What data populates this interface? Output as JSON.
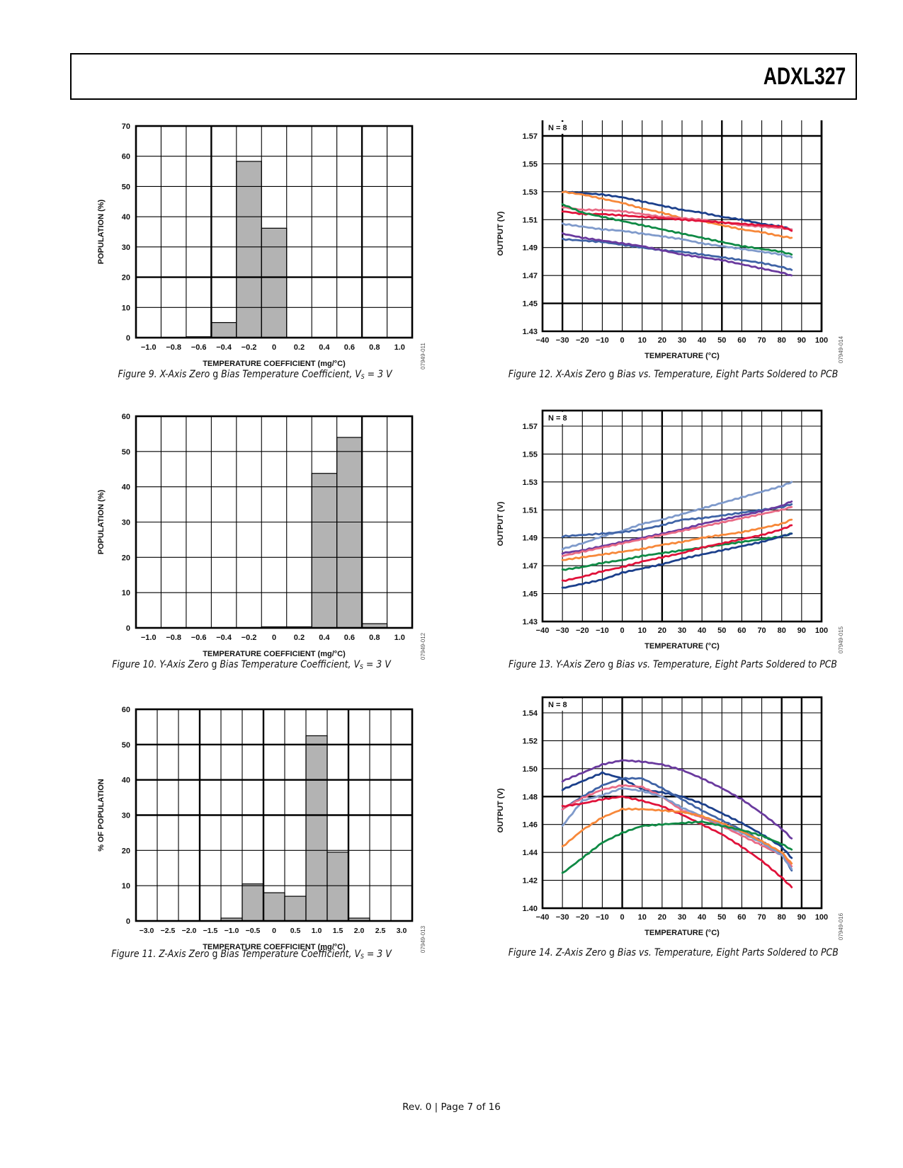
{
  "header": {
    "title": "ADXL327"
  },
  "footer": {
    "text": "Rev. 0 | Page 7 of 16"
  },
  "figures": [
    {
      "caption_prefix": "Figure 9. X-Axis Zero ",
      "caption_g": "g",
      "caption_mid": " Bias Temperature Coefficient, V",
      "caption_sub": "S",
      "caption_suffix": " = 3 V",
      "figure_id": "07949-011"
    },
    {
      "caption_prefix": "Figure 10. Y-Axis Zero ",
      "caption_g": "g",
      "caption_mid": " Bias Temperature Coefficient, V",
      "caption_sub": "S",
      "caption_suffix": " = 3 V",
      "figure_id": "07949-012"
    },
    {
      "caption_prefix": "Figure 11. Z-Axis Zero ",
      "caption_g": "g",
      "caption_mid": " Bias Temperature Coefficient, V",
      "caption_sub": "S",
      "caption_suffix": " = 3 V",
      "figure_id": "07949-013"
    },
    {
      "caption_prefix": "Figure 12. X-Axis Zero ",
      "caption_g": "g",
      "caption_mid": " Bias vs. Temperature, Eight Parts Soldered to PCB",
      "figure_id": "07949-014"
    },
    {
      "caption_prefix": "Figure 13. Y-Axis Zero ",
      "caption_g": "g",
      "caption_mid": " Bias vs. Temperature, Eight Parts Soldered to PCB",
      "figure_id": "07949-015"
    },
    {
      "caption_prefix": "Figure 14. Z-Axis Zero ",
      "caption_g": "g",
      "caption_mid": " Bias vs. Temperature, Eight Parts Soldered to PCB",
      "figure_id": "07949-016"
    }
  ],
  "chart_data": [
    {
      "id": "fig9",
      "type": "bar",
      "title": "Figure 9. X-Axis Zero g Bias Temperature Coefficient, VS = 3 V",
      "xlabel": "TEMPERATURE COEFFICIENT (mg/°C)",
      "ylabel": "POPULATION (%)",
      "categories": [
        "−1.0",
        "−0.8",
        "−0.6",
        "−0.4",
        "−0.2",
        "0",
        "0.2",
        "0.4",
        "0.6",
        "0.8",
        "1.0"
      ],
      "values": [
        0,
        0,
        0.3,
        5,
        58.3,
        36.2,
        0,
        0,
        0,
        0,
        0
      ],
      "ylim": [
        0,
        70
      ],
      "yticks": [
        0,
        10,
        20,
        30,
        40,
        50,
        60,
        70
      ],
      "grid": true,
      "bar_color": "#b3b3b3"
    },
    {
      "id": "fig10",
      "type": "bar",
      "title": "Figure 10. Y-Axis Zero g Bias Temperature Coefficient, VS = 3 V",
      "xlabel": "TEMPERATURE COEFFICIENT (mg/°C)",
      "ylabel": "POPULATION (%)",
      "categories": [
        "−1.0",
        "−0.8",
        "−0.6",
        "−0.4",
        "−0.2",
        "0",
        "0.2",
        "0.4",
        "0.6",
        "0.8",
        "1.0"
      ],
      "values": [
        0,
        0,
        0,
        0,
        0,
        0.3,
        0.3,
        43.8,
        54,
        1.2,
        0
      ],
      "ylim": [
        0,
        60
      ],
      "yticks": [
        0,
        10,
        20,
        30,
        40,
        50,
        60
      ],
      "grid": true,
      "bar_color": "#b3b3b3"
    },
    {
      "id": "fig11",
      "type": "bar",
      "title": "Figure 11. Z-Axis Zero g Bias Temperature Coefficient, VS = 3 V",
      "xlabel": "TEMPERATURE COEFFICIENT (mg/°C)",
      "ylabel": "% OF POPULATION",
      "categories": [
        "−3.0",
        "−2.5",
        "−2.0",
        "−1.5",
        "−1.0",
        "−0.5",
        "0",
        "0.5",
        "1.0",
        "1.5",
        "2.0",
        "2.5",
        "3.0"
      ],
      "values": [
        0,
        0,
        0,
        0,
        0.8,
        10.5,
        8,
        7,
        52.5,
        19.5,
        0.8,
        0,
        0
      ],
      "ylim": [
        0,
        60
      ],
      "yticks": [
        0,
        10,
        20,
        30,
        40,
        50,
        60
      ],
      "grid": true,
      "bar_color": "#b3b3b3"
    },
    {
      "id": "fig12",
      "type": "line",
      "title": "Figure 12. X-Axis Zero g Bias vs. Temperature, Eight Parts Soldered to PCB",
      "xlabel": "TEMPERATURE (°C)",
      "ylabel": "OUTPUT (V)",
      "annotation": "N = 8",
      "xlim": [
        -40,
        100
      ],
      "ylim": [
        1.43,
        1.57
      ],
      "xticks": [
        -40,
        -30,
        -20,
        -10,
        0,
        10,
        20,
        30,
        40,
        50,
        60,
        70,
        80,
        90,
        100
      ],
      "xtick_labels": [
        "−40",
        "−30",
        "−20",
        "−10",
        "0",
        "10",
        "20",
        "30",
        "40",
        "50",
        "60",
        "70",
        "80",
        "90",
        "100"
      ],
      "yticks": [
        1.43,
        1.45,
        1.47,
        1.49,
        1.51,
        1.53,
        1.55,
        1.57
      ],
      "ytick_labels": [
        "1.43",
        "1.45",
        "1.47",
        "1.49",
        "1.51",
        "1.53",
        "1.55",
        "1.57"
      ],
      "grid": true,
      "x": [
        -30,
        -20,
        -10,
        0,
        10,
        20,
        30,
        40,
        50,
        60,
        70,
        80,
        85
      ],
      "series": [
        {
          "name": "part-1",
          "color": "#1b3f8b",
          "values": [
            1.53,
            1.529,
            1.528,
            1.526,
            1.523,
            1.52,
            1.517,
            1.515,
            1.512,
            1.51,
            1.507,
            1.505,
            1.503
          ]
        },
        {
          "name": "part-2",
          "color": "#f7883a",
          "values": [
            1.53,
            1.528,
            1.525,
            1.522,
            1.518,
            1.515,
            1.511,
            1.509,
            1.506,
            1.503,
            1.501,
            1.498,
            1.497
          ]
        },
        {
          "name": "part-3",
          "color": "#e96b86",
          "values": [
            1.519,
            1.517,
            1.517,
            1.516,
            1.514,
            1.512,
            1.511,
            1.51,
            1.508,
            1.506,
            1.505,
            1.504,
            1.503
          ]
        },
        {
          "name": "part-4",
          "color": "#e0123a",
          "values": [
            1.516,
            1.514,
            1.514,
            1.513,
            1.512,
            1.511,
            1.51,
            1.509,
            1.508,
            1.507,
            1.506,
            1.505,
            1.502
          ]
        },
        {
          "name": "part-5",
          "color": "#0f8a45",
          "values": [
            1.521,
            1.515,
            1.512,
            1.509,
            1.506,
            1.503,
            1.5,
            1.497,
            1.494,
            1.491,
            1.489,
            1.487,
            1.485
          ]
        },
        {
          "name": "part-6",
          "color": "#7f9acb",
          "values": [
            1.507,
            1.505,
            1.503,
            1.502,
            1.5,
            1.498,
            1.496,
            1.493,
            1.491,
            1.489,
            1.487,
            1.485,
            1.483
          ]
        },
        {
          "name": "part-7",
          "color": "#3f63a6",
          "values": [
            1.496,
            1.495,
            1.494,
            1.492,
            1.49,
            1.488,
            1.487,
            1.485,
            1.483,
            1.481,
            1.479,
            1.476,
            1.474
          ]
        },
        {
          "name": "part-8",
          "color": "#6a3a9e",
          "values": [
            1.5,
            1.497,
            1.495,
            1.493,
            1.491,
            1.488,
            1.485,
            1.483,
            1.481,
            1.478,
            1.475,
            1.472,
            1.47
          ]
        }
      ]
    },
    {
      "id": "fig13",
      "type": "line",
      "title": "Figure 13. Y-Axis Zero g Bias vs. Temperature, Eight Parts Soldered to PCB",
      "xlabel": "TEMPERATURE (°C)",
      "ylabel": "OUTPUT (V)",
      "annotation": "N = 8",
      "xlim": [
        -40,
        100
      ],
      "ylim": [
        1.43,
        1.57
      ],
      "xticks": [
        -40,
        -30,
        -20,
        -10,
        0,
        10,
        20,
        30,
        40,
        50,
        60,
        70,
        80,
        90,
        100
      ],
      "xtick_labels": [
        "−40",
        "−30",
        "−20",
        "−10",
        "0",
        "10",
        "20",
        "30",
        "40",
        "50",
        "60",
        "70",
        "80",
        "90",
        "100"
      ],
      "yticks": [
        1.43,
        1.45,
        1.47,
        1.49,
        1.51,
        1.53,
        1.55,
        1.57
      ],
      "ytick_labels": [
        "1.43",
        "1.45",
        "1.47",
        "1.49",
        "1.51",
        "1.53",
        "1.55",
        "1.57"
      ],
      "grid": true,
      "x": [
        -30,
        -20,
        -10,
        0,
        10,
        20,
        30,
        40,
        50,
        60,
        70,
        80,
        85
      ],
      "series": [
        {
          "name": "part-1",
          "color": "#7f9acb",
          "values": [
            1.482,
            1.486,
            1.491,
            1.495,
            1.5,
            1.503,
            1.507,
            1.511,
            1.515,
            1.519,
            1.523,
            1.527,
            1.53
          ]
        },
        {
          "name": "part-2",
          "color": "#3f63a6",
          "values": [
            1.491,
            1.492,
            1.493,
            1.494,
            1.496,
            1.499,
            1.503,
            1.504,
            1.506,
            1.508,
            1.51,
            1.512,
            1.514
          ]
        },
        {
          "name": "part-3",
          "color": "#6a3a9e",
          "values": [
            1.479,
            1.481,
            1.484,
            1.487,
            1.49,
            1.493,
            1.496,
            1.5,
            1.503,
            1.506,
            1.509,
            1.513,
            1.516
          ]
        },
        {
          "name": "part-4",
          "color": "#e96b86",
          "values": [
            1.477,
            1.48,
            1.483,
            1.486,
            1.489,
            1.492,
            1.495,
            1.498,
            1.501,
            1.504,
            1.507,
            1.51,
            1.512
          ]
        },
        {
          "name": "part-5",
          "color": "#f7883a",
          "values": [
            1.474,
            1.476,
            1.478,
            1.48,
            1.482,
            1.485,
            1.487,
            1.49,
            1.492,
            1.494,
            1.497,
            1.5,
            1.503
          ]
        },
        {
          "name": "part-6",
          "color": "#0f8a45",
          "values": [
            1.467,
            1.469,
            1.472,
            1.474,
            1.477,
            1.479,
            1.481,
            1.483,
            1.485,
            1.487,
            1.489,
            1.491,
            1.493
          ]
        },
        {
          "name": "part-7",
          "color": "#e0123a",
          "values": [
            1.459,
            1.462,
            1.466,
            1.469,
            1.473,
            1.476,
            1.479,
            1.483,
            1.486,
            1.489,
            1.492,
            1.496,
            1.499
          ]
        },
        {
          "name": "part-8",
          "color": "#1b3f8b",
          "values": [
            1.454,
            1.457,
            1.46,
            1.465,
            1.468,
            1.471,
            1.475,
            1.478,
            1.481,
            1.484,
            1.487,
            1.491,
            1.493
          ]
        }
      ]
    },
    {
      "id": "fig14",
      "type": "line",
      "title": "Figure 14. Z-Axis Zero g Bias vs. Temperature, Eight Parts Soldered to PCB",
      "xlabel": "TEMPERATURE (°C)",
      "ylabel": "OUTPUT (V)",
      "annotation": "N = 8",
      "xlim": [
        -40,
        100
      ],
      "ylim": [
        1.4,
        1.55
      ],
      "xticks": [
        -40,
        -30,
        -20,
        -10,
        0,
        10,
        20,
        30,
        40,
        50,
        60,
        70,
        80,
        90,
        100
      ],
      "xtick_labels": [
        "−40",
        "−30",
        "−20",
        "−10",
        "0",
        "10",
        "20",
        "30",
        "40",
        "50",
        "60",
        "70",
        "80",
        "90",
        "100"
      ],
      "yticks": [
        1.4,
        1.42,
        1.44,
        1.46,
        1.48,
        1.5,
        1.52,
        1.54
      ],
      "ytick_labels": [
        "1.40",
        "1.42",
        "1.44",
        "1.46",
        "1.48",
        "1.50",
        "1.52",
        "1.54"
      ],
      "grid": true,
      "x": [
        -30,
        -20,
        -10,
        0,
        10,
        20,
        30,
        40,
        50,
        60,
        70,
        80,
        85
      ],
      "series": [
        {
          "name": "part-1",
          "color": "#6a3a9e",
          "values": [
            1.491,
            1.497,
            1.503,
            1.506,
            1.505,
            1.503,
            1.499,
            1.493,
            1.486,
            1.478,
            1.468,
            1.457,
            1.45
          ]
        },
        {
          "name": "part-2",
          "color": "#1b3f8b",
          "values": [
            1.485,
            1.491,
            1.497,
            1.493,
            1.485,
            1.483,
            1.48,
            1.475,
            1.468,
            1.461,
            1.453,
            1.444,
            1.436
          ]
        },
        {
          "name": "part-3",
          "color": "#3f63a6",
          "values": [
            1.471,
            1.48,
            1.488,
            1.493,
            1.493,
            1.486,
            1.478,
            1.47,
            1.463,
            1.456,
            1.448,
            1.439,
            1.427
          ]
        },
        {
          "name": "part-4",
          "color": "#e96b86",
          "values": [
            1.471,
            1.479,
            1.485,
            1.488,
            1.487,
            1.48,
            1.47,
            1.465,
            1.459,
            1.452,
            1.445,
            1.438,
            1.43
          ]
        },
        {
          "name": "part-5",
          "color": "#7f9acb",
          "values": [
            1.459,
            1.477,
            1.481,
            1.486,
            1.484,
            1.48,
            1.472,
            1.466,
            1.46,
            1.454,
            1.447,
            1.438,
            1.428
          ]
        },
        {
          "name": "part-6",
          "color": "#e0123a",
          "values": [
            1.473,
            1.475,
            1.478,
            1.48,
            1.477,
            1.473,
            1.467,
            1.46,
            1.453,
            1.444,
            1.434,
            1.422,
            1.415
          ]
        },
        {
          "name": "part-7",
          "color": "#f7883a",
          "values": [
            1.444,
            1.456,
            1.465,
            1.471,
            1.471,
            1.47,
            1.469,
            1.466,
            1.461,
            1.455,
            1.448,
            1.44,
            1.432
          ]
        },
        {
          "name": "part-8",
          "color": "#0f8a45",
          "values": [
            1.425,
            1.436,
            1.447,
            1.454,
            1.459,
            1.46,
            1.461,
            1.462,
            1.459,
            1.456,
            1.452,
            1.446,
            1.442
          ]
        }
      ]
    }
  ]
}
